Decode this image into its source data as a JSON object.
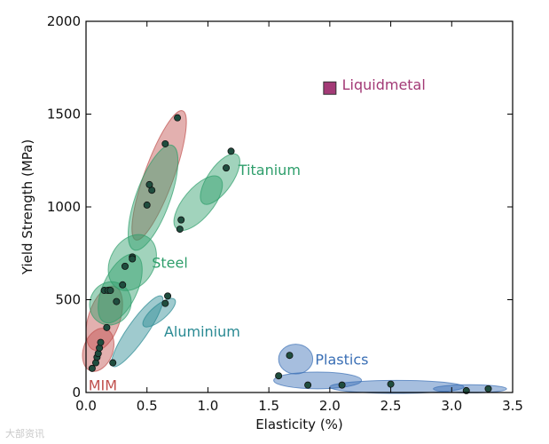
{
  "chart_data": {
    "type": "scatter",
    "title": "",
    "xlabel": "Elasticity (%)",
    "ylabel": "Yield Strength (MPa)",
    "xlim": [
      0,
      3.5
    ],
    "ylim": [
      0,
      2000
    ],
    "xticks": [
      "0.0",
      "0.5",
      "1.0",
      "1.5",
      "2.0",
      "2.5",
      "3.0",
      "3.5"
    ],
    "yticks": [
      "0",
      "500",
      "1000",
      "1500",
      "2000"
    ],
    "grid": false,
    "series": [
      {
        "name": "MIM",
        "color": "#c0504d",
        "marker": "circle",
        "points": [
          [
            0.05,
            130
          ],
          [
            0.08,
            160
          ],
          [
            0.09,
            190
          ],
          [
            0.1,
            210
          ],
          [
            0.11,
            240
          ],
          [
            0.12,
            270
          ],
          [
            0.15,
            550
          ],
          [
            0.18,
            550
          ],
          [
            0.17,
            350
          ],
          [
            0.38,
            730
          ],
          [
            0.54,
            1090
          ],
          [
            0.75,
            1480
          ]
        ],
        "regions": [
          {
            "cx": 0.1,
            "cy": 230,
            "rx": 0.12,
            "ry": 120,
            "angle": 70
          },
          {
            "cx": 0.15,
            "cy": 400,
            "rx": 0.13,
            "ry": 180,
            "angle": 72
          },
          {
            "cx": 0.6,
            "cy": 1170,
            "rx": 0.12,
            "ry": 370,
            "angle": 70
          }
        ]
      },
      {
        "name": "Steel",
        "color": "#2e9e6b",
        "marker": "circle",
        "points": [
          [
            0.2,
            550
          ],
          [
            0.25,
            490
          ],
          [
            0.3,
            580
          ],
          [
            0.32,
            680
          ],
          [
            0.38,
            720
          ],
          [
            0.5,
            1010
          ],
          [
            0.52,
            1120
          ],
          [
            0.65,
            1340
          ]
        ],
        "regions": [
          {
            "cx": 0.2,
            "cy": 480,
            "rx": 0.18,
            "ry": 110,
            "angle": 60
          },
          {
            "cx": 0.38,
            "cy": 700,
            "rx": 0.18,
            "ry": 160,
            "angle": 60
          },
          {
            "cx": 0.55,
            "cy": 1050,
            "rx": 0.14,
            "ry": 300,
            "angle": 70
          },
          {
            "cx": 0.28,
            "cy": 560,
            "rx": 0.14,
            "ry": 200,
            "angle": 65
          }
        ]
      },
      {
        "name": "Titanium",
        "color": "#2e9e6b",
        "marker": "circle",
        "points": [
          [
            0.77,
            880
          ],
          [
            0.78,
            930
          ],
          [
            1.15,
            1210
          ],
          [
            1.19,
            1300
          ]
        ],
        "regions": [
          {
            "cx": 0.92,
            "cy": 1020,
            "rx": 0.12,
            "ry": 180,
            "angle": 50
          },
          {
            "cx": 1.1,
            "cy": 1150,
            "rx": 0.1,
            "ry": 160,
            "angle": 55
          }
        ]
      },
      {
        "name": "Aluminium",
        "color": "#2a8a93",
        "marker": "circle",
        "points": [
          [
            0.22,
            160
          ],
          [
            0.65,
            480
          ],
          [
            0.67,
            520
          ]
        ],
        "regions": [
          {
            "cx": 0.42,
            "cy": 330,
            "rx": 0.08,
            "ry": 230,
            "angle": 55
          },
          {
            "cx": 0.6,
            "cy": 430,
            "rx": 0.06,
            "ry": 110,
            "angle": 40
          }
        ]
      },
      {
        "name": "Plastics",
        "color": "#3a6fb5",
        "marker": "circle",
        "points": [
          [
            1.58,
            90
          ],
          [
            1.67,
            200
          ],
          [
            1.82,
            40
          ],
          [
            2.1,
            40
          ],
          [
            2.5,
            45
          ],
          [
            3.12,
            10
          ],
          [
            3.3,
            20
          ]
        ],
        "regions": [
          {
            "cx": 1.72,
            "cy": 180,
            "rx": 0.14,
            "ry": 80,
            "angle": 0
          },
          {
            "cx": 1.9,
            "cy": 65,
            "rx": 0.36,
            "ry": 45,
            "angle": 0
          },
          {
            "cx": 2.55,
            "cy": 30,
            "rx": 0.55,
            "ry": 35,
            "angle": 0
          },
          {
            "cx": 3.15,
            "cy": 20,
            "rx": 0.3,
            "ry": 22,
            "angle": 0
          }
        ]
      },
      {
        "name": "Liquidmetal",
        "color": "#a33a76",
        "marker": "square",
        "points": [
          [
            2.0,
            1640
          ]
        ],
        "regions": []
      }
    ],
    "annotations": [
      {
        "text": "Liquidmetal",
        "x": 2.1,
        "y": 1660,
        "color": "#a33a76"
      },
      {
        "text": "Titanium",
        "x": 1.25,
        "y": 1200,
        "color": "#2e9e6b"
      },
      {
        "text": "Steel",
        "x": 0.54,
        "y": 700,
        "color": "#2e9e6b"
      },
      {
        "text": "Aluminium",
        "x": 0.64,
        "y": 330,
        "color": "#2a8a93"
      },
      {
        "text": "Plastics",
        "x": 1.88,
        "y": 180,
        "color": "#3a6fb5"
      },
      {
        "text": "MIM",
        "x": 0.02,
        "y": 40,
        "color": "#c0504d"
      }
    ]
  },
  "watermark": "大部资讯"
}
